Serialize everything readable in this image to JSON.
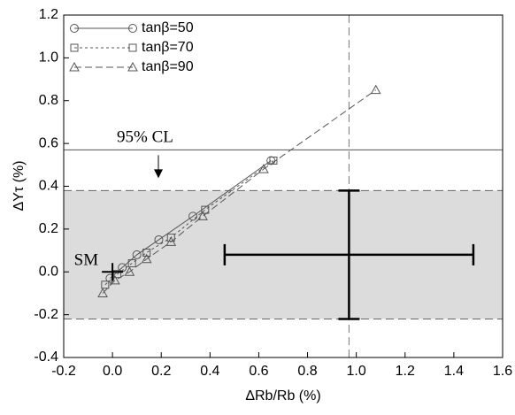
{
  "chart_data": {
    "type": "line",
    "xlabel": "ΔRb/Rb (%)",
    "ylabel": "ΔYτ (%)",
    "xlim": [
      -0.2,
      1.6
    ],
    "xticks": [
      -0.2,
      {
        "value": 0,
        "label": "0.0"
      },
      0.2,
      0.4,
      0.6,
      0.8,
      {
        "value": 1,
        "label": "1.0"
      },
      1.2,
      1.4,
      1.6
    ],
    "ylim": [
      -0.4,
      1.2
    ],
    "yticks": [
      -0.4,
      -0.2,
      {
        "value": 0,
        "label": "0.0"
      },
      0.2,
      0.4,
      0.6,
      0.8,
      {
        "value": 1,
        "label": "1.0"
      },
      1.2
    ],
    "legend": "upper left",
    "series": [
      {
        "name": "tanβ=50",
        "color": "#555555",
        "marker": "circle",
        "dash": "solid",
        "x": [
          -0.01,
          0.04,
          0.1,
          0.19,
          0.33,
          0.65
        ],
        "values": [
          -0.03,
          0.02,
          0.08,
          0.15,
          0.26,
          0.52
        ]
      },
      {
        "name": "tanβ=70",
        "color": "#555555",
        "marker": "square",
        "dash": "dotted",
        "x": [
          -0.03,
          0.02,
          0.08,
          0.14,
          0.24,
          0.38,
          0.66
        ],
        "values": [
          -0.06,
          -0.01,
          0.04,
          0.09,
          0.16,
          0.29,
          0.52
        ]
      },
      {
        "name": "tanβ=90",
        "color": "#555555",
        "marker": "triangle",
        "dash": "dashed",
        "x": [
          -0.04,
          0.01,
          0.07,
          0.14,
          0.24,
          0.37,
          0.62,
          1.08
        ],
        "values": [
          -0.1,
          -0.04,
          0.0,
          0.06,
          0.14,
          0.26,
          0.48,
          0.85
        ]
      }
    ],
    "band": {
      "ymin": -0.22,
      "ymax": 0.38,
      "color": "#dcdcdc"
    },
    "cl_line": {
      "y": 0.57,
      "label": "95% CL"
    },
    "vline": 0.97,
    "measurement": {
      "x": 0.97,
      "y": 0.08,
      "xmin": 0.46,
      "xmax": 1.48,
      "ymin": -0.22,
      "ymax": 0.38
    },
    "sm_point": {
      "x": 0,
      "y": 0,
      "label": "SM"
    }
  }
}
